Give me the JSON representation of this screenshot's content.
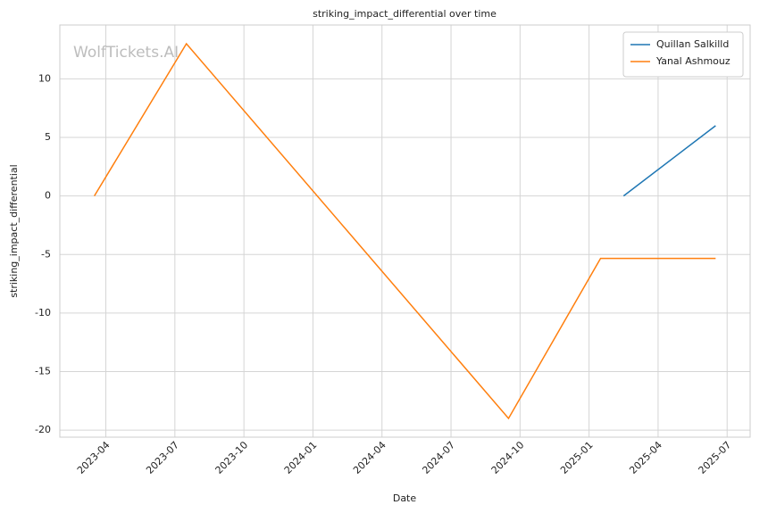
{
  "chart_data": {
    "type": "line",
    "title": "striking_impact_differential over time",
    "x_label": "Date",
    "y_label": "striking_impact_differential",
    "watermark": "WolfTickets.AI",
    "series": [
      {
        "name": "Quillan Salkilld",
        "color": "#1f77b4",
        "x": [
          "2025-02",
          "2025-06"
        ],
        "values": [
          0,
          6
        ]
      },
      {
        "name": "Yanal Ashmouz",
        "color": "#ff7f0e",
        "x": [
          "2023-03",
          "2023-07",
          "2024-09",
          "2025-01",
          "2025-06"
        ],
        "values": [
          0,
          13,
          -19,
          -5.33,
          -5.33
        ]
      }
    ],
    "xlim": [
      "2023-02",
      "2025-08"
    ],
    "xticks": [
      "2023-04",
      "2023-07",
      "2023-10",
      "2024-01",
      "2024-04",
      "2024-07",
      "2024-10",
      "2025-01",
      "2025-04",
      "2025-07"
    ],
    "ylim": [
      -20.6,
      14.6
    ],
    "yticks": [
      -20,
      -15,
      -10,
      -5,
      0,
      5,
      10
    ],
    "grid": true,
    "legend": "upper right"
  }
}
